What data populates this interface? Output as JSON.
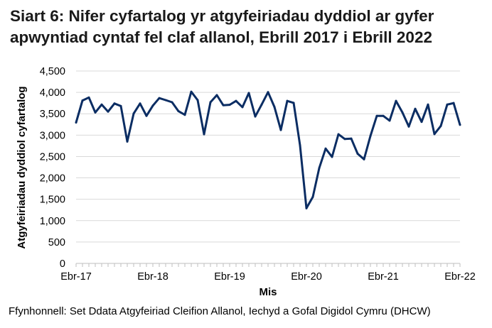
{
  "title_line1": "Siart 6: Nifer cyfartalog yr atgyfeiriadau dyddiol ar gyfer",
  "title_line2": "apwyntiad cyntaf fel claf allanol, Ebrill 2017 i Ebrill 2022",
  "source": "Ffynhonnell: Set Ddata Atgyfeiriad Cleifion Allanol, Iechyd a Gofal Digidol Cymru (DHCW)",
  "chart_data": {
    "type": "line",
    "xlabel": "Mis",
    "ylabel": "Atgyfeiriadau dyddiol cyfartalog",
    "ylim": [
      0,
      4500
    ],
    "yticks": [
      0,
      500,
      1000,
      1500,
      2000,
      2500,
      3000,
      3500,
      4000,
      4500
    ],
    "ytick_labels": [
      "0",
      "500",
      "1,000",
      "1,500",
      "2,000",
      "2,500",
      "3,000",
      "3,500",
      "4,000",
      "4,500"
    ],
    "xtick_labels": [
      "Ebr-17",
      "Ebr-18",
      "Ebr-19",
      "Ebr-20",
      "Ebr-21",
      "Ebr-22"
    ],
    "xtick_every_months": 12,
    "x_start": "2017-04",
    "x_end": "2022-04",
    "grid": true,
    "line_color": "#0b2d63",
    "values": [
      3295,
      3810,
      3880,
      3530,
      3715,
      3550,
      3740,
      3680,
      2850,
      3505,
      3740,
      3450,
      3690,
      3865,
      3820,
      3770,
      3560,
      3475,
      4015,
      3820,
      3020,
      3770,
      3935,
      3700,
      3710,
      3800,
      3655,
      3985,
      3435,
      3715,
      4005,
      3660,
      3120,
      3800,
      3755,
      2760,
      1290,
      1555,
      2230,
      2685,
      2490,
      3020,
      2910,
      2920,
      2565,
      2435,
      2980,
      3450,
      3450,
      3340,
      3800,
      3530,
      3200,
      3615,
      3310,
      3715,
      3025,
      3215,
      3715,
      3750,
      3240
    ]
  }
}
